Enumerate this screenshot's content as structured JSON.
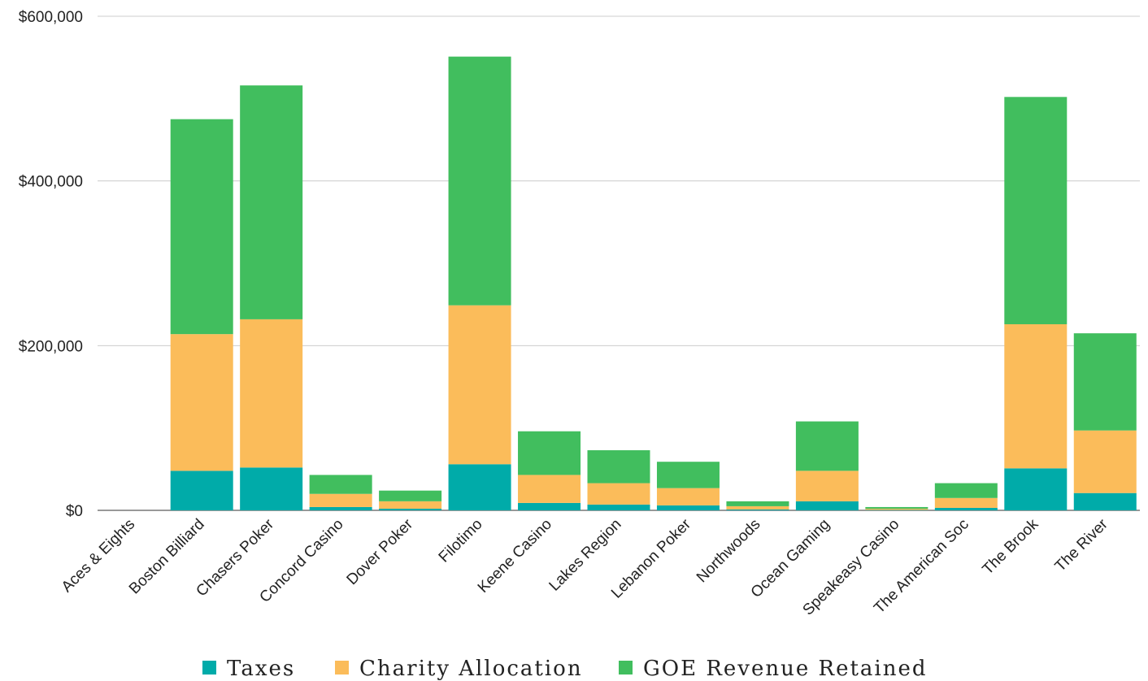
{
  "chart_data": {
    "type": "bar",
    "stacked": true,
    "categories": [
      "Aces & Eights",
      "Boston Billiard",
      "Chasers Poker",
      "Concord Casino",
      "Dover Poker",
      "Filotimo",
      "Keene Casino",
      "Lakes Region",
      "Lebanon Poker",
      "Northwoods",
      "Ocean Gaming",
      "Speakeasy Casino",
      "The American Soc",
      "The Brook",
      "The River"
    ],
    "series": [
      {
        "name": "Taxes",
        "color": "#00ABA9",
        "values": [
          0,
          48000,
          52000,
          4000,
          2000,
          56000,
          9000,
          7000,
          6000,
          1000,
          11000,
          500,
          3000,
          51000,
          21000
        ]
      },
      {
        "name": "Charity Allocation",
        "color": "#FBBC5A",
        "values": [
          0,
          166000,
          180000,
          16000,
          9000,
          193000,
          34000,
          26000,
          21000,
          4000,
          37000,
          1500,
          12000,
          175000,
          76000
        ]
      },
      {
        "name": "GOE Revenue Retained",
        "color": "#41BE5E",
        "values": [
          0,
          261000,
          284000,
          23000,
          13000,
          302000,
          53000,
          40000,
          32000,
          6000,
          60000,
          2000,
          18000,
          276000,
          118000
        ]
      }
    ],
    "ylim": [
      0,
      600000
    ],
    "yticks": [
      0,
      200000,
      400000,
      600000
    ],
    "ytick_labels": [
      "$0",
      "$200,000",
      "$400,000",
      "$600,000"
    ],
    "grid": true,
    "legend": "bottom",
    "title": "",
    "xlabel": "",
    "ylabel": ""
  }
}
